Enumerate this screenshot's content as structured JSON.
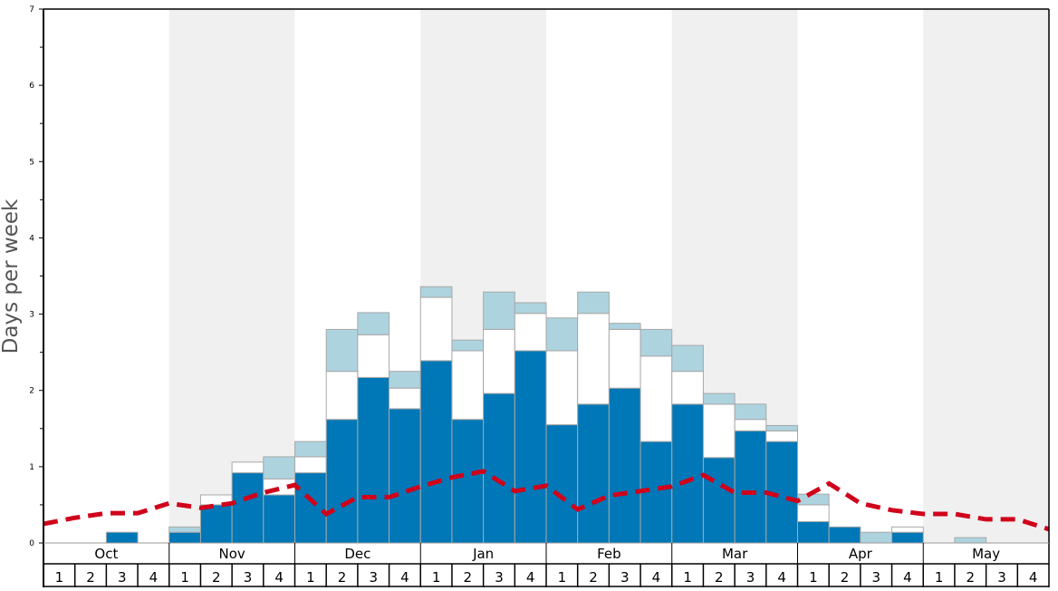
{
  "chart_data": {
    "type": "bar",
    "stacked": true,
    "ylabel": "Days per week",
    "xlabel": "",
    "ylim": [
      0,
      7
    ],
    "yticks": [
      "0",
      "1",
      "2",
      "3",
      "4",
      "5",
      "6",
      "7"
    ],
    "grid": false,
    "months": [
      "Oct",
      "Nov",
      "Dec",
      "Jan",
      "Feb",
      "Mar",
      "Apr",
      "May"
    ],
    "week_labels": [
      "1",
      "2",
      "3",
      "4"
    ],
    "colors": {
      "bottom": "#0077b6",
      "middle": "#ffffff",
      "top": "#add3df",
      "line": "#d0021b",
      "band": "#f0f0f0",
      "bar_edge": "#a8a8a8"
    },
    "bars": {
      "bottom": [
        0,
        0,
        0.14,
        0,
        0.14,
        0.5,
        0.92,
        0.63,
        0.92,
        1.62,
        2.17,
        1.76,
        2.39,
        1.62,
        1.96,
        2.52,
        1.55,
        1.82,
        2.03,
        1.33,
        1.82,
        1.12,
        1.47,
        1.33,
        0.28,
        0.21,
        0,
        0.14,
        0,
        0,
        0,
        0
      ],
      "middle": [
        0,
        0,
        0,
        0,
        0,
        0.13,
        0.14,
        0.21,
        0.21,
        0.63,
        0.56,
        0.27,
        0.83,
        0.9,
        0.84,
        0.49,
        0.97,
        1.19,
        0.77,
        1.12,
        0.43,
        0.7,
        0.15,
        0.14,
        0.22,
        0,
        0,
        0.07,
        0,
        0,
        0,
        0
      ],
      "top": [
        0,
        0,
        0,
        0,
        0.07,
        0,
        0,
        0.29,
        0.2,
        0.55,
        0.29,
        0.22,
        0.14,
        0.14,
        0.49,
        0.14,
        0.43,
        0.28,
        0.08,
        0.35,
        0.34,
        0.14,
        0.2,
        0.07,
        0.14,
        0,
        0.14,
        0,
        0,
        0.07,
        0,
        0
      ]
    },
    "line": {
      "style": "dashed",
      "values": [
        0.25,
        0.33,
        0.39,
        0.39,
        0.52,
        0.46,
        0.52,
        0.66,
        0.76,
        0.38,
        0.6,
        0.6,
        0.74,
        0.86,
        0.94,
        0.68,
        0.75,
        0.44,
        0.62,
        0.68,
        0.74,
        0.89,
        0.66,
        0.66,
        0.55,
        0.78,
        0.52,
        0.43,
        0.38,
        0.38,
        0.31,
        0.31,
        0.18
      ]
    }
  }
}
